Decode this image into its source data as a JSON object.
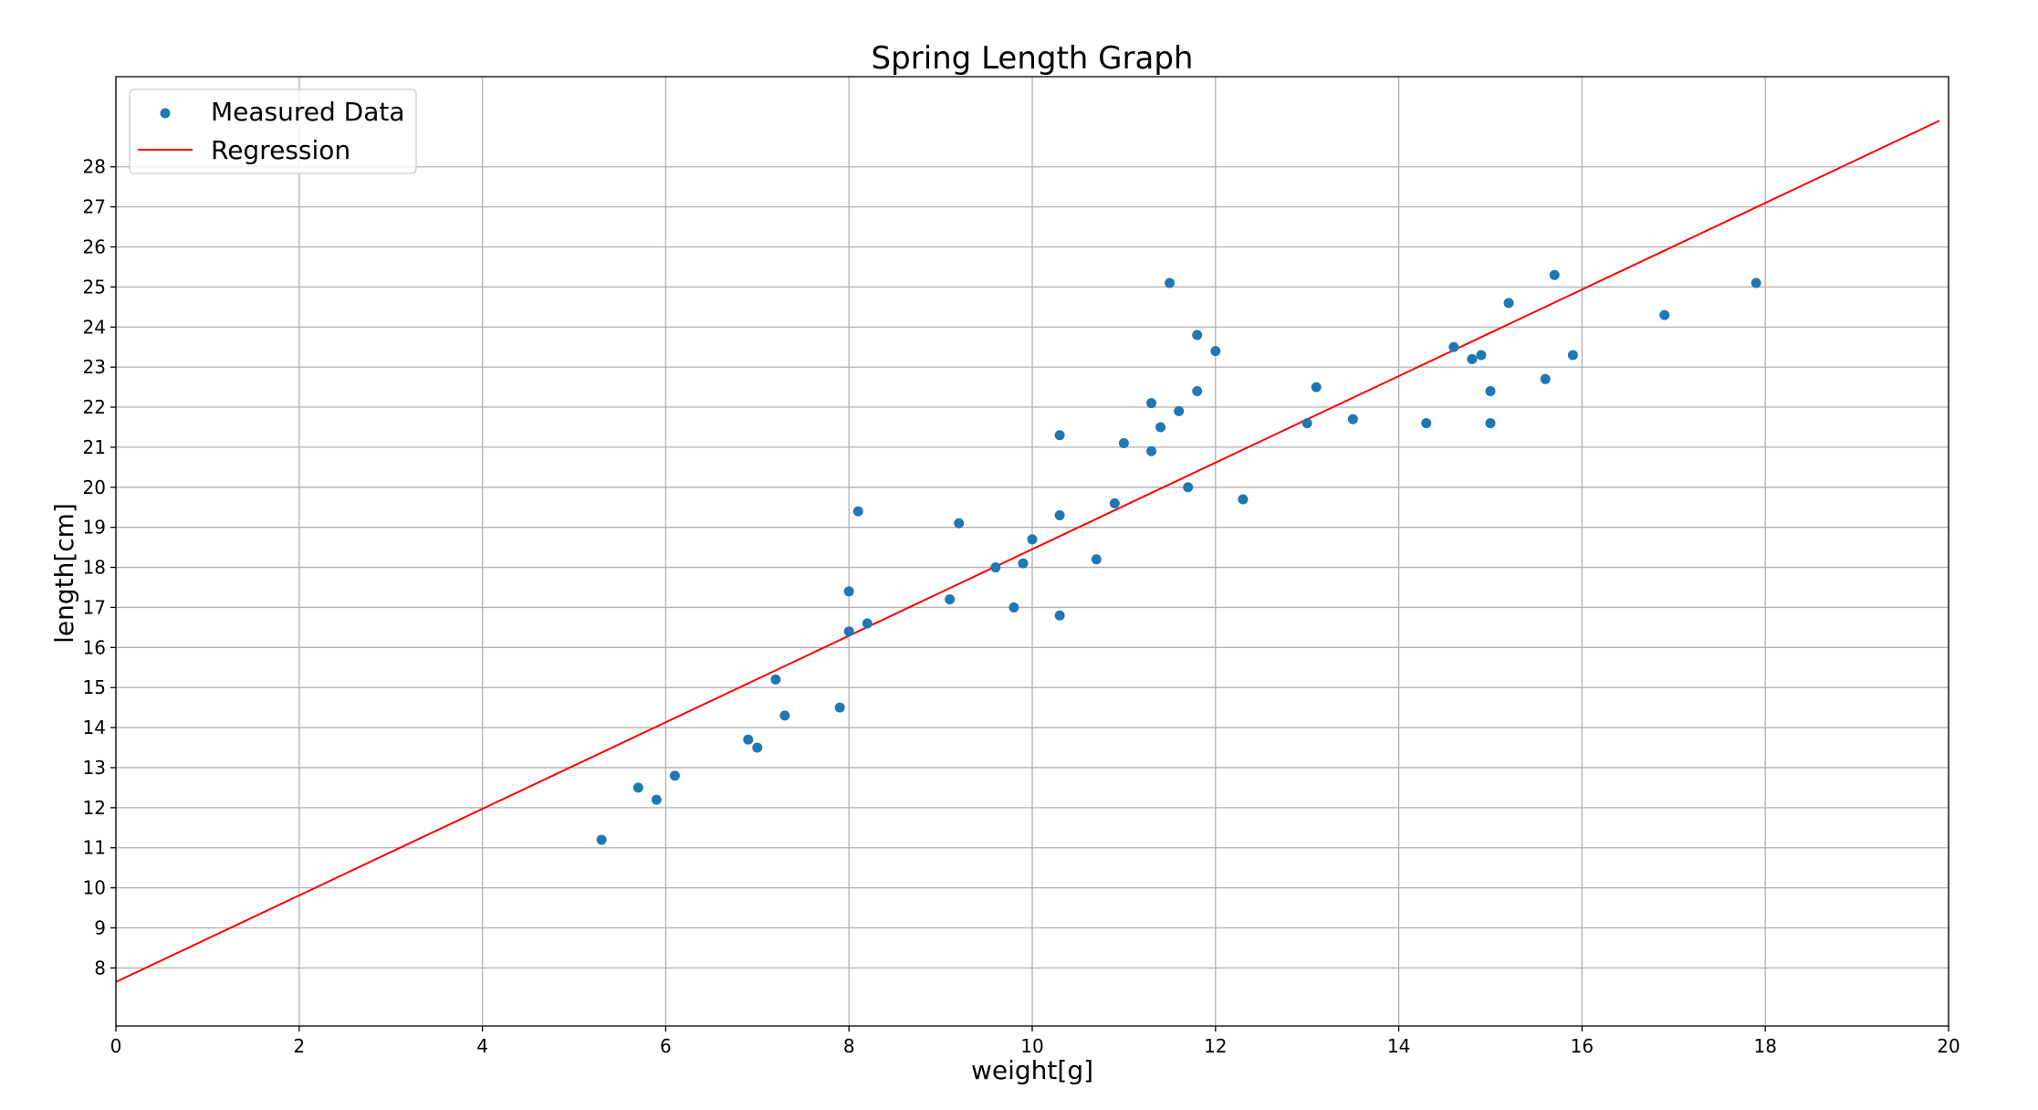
{
  "chart_data": {
    "type": "scatter",
    "title": "Spring Length Graph",
    "xlabel": "weight[g]",
    "ylabel": "length[cm]",
    "xlim": [
      0,
      20
    ],
    "ylim": [
      6.55,
      30.25
    ],
    "xticks": [
      0,
      2,
      4,
      6,
      8,
      10,
      12,
      14,
      16,
      18,
      20
    ],
    "yticks": [
      8,
      9,
      10,
      11,
      12,
      13,
      14,
      15,
      16,
      17,
      18,
      19,
      20,
      21,
      22,
      23,
      24,
      25,
      26,
      27,
      28
    ],
    "grid": true,
    "legend_position": "top-left",
    "series": [
      {
        "name": "Measured Data",
        "kind": "scatter",
        "color": "#1f77b4",
        "points": [
          [
            5.3,
            11.2
          ],
          [
            5.7,
            12.5
          ],
          [
            5.9,
            12.2
          ],
          [
            6.1,
            12.8
          ],
          [
            6.9,
            13.7
          ],
          [
            7.0,
            13.5
          ],
          [
            7.2,
            15.2
          ],
          [
            7.3,
            14.3
          ],
          [
            7.9,
            14.5
          ],
          [
            8.0,
            16.4
          ],
          [
            8.0,
            17.4
          ],
          [
            8.1,
            19.4
          ],
          [
            8.2,
            16.6
          ],
          [
            9.1,
            17.2
          ],
          [
            9.2,
            19.1
          ],
          [
            9.6,
            18.0
          ],
          [
            9.8,
            17.0
          ],
          [
            9.9,
            18.1
          ],
          [
            10.0,
            18.7
          ],
          [
            10.3,
            16.8
          ],
          [
            10.3,
            19.3
          ],
          [
            10.3,
            21.3
          ],
          [
            10.7,
            18.2
          ],
          [
            10.9,
            19.6
          ],
          [
            11.0,
            21.1
          ],
          [
            11.3,
            20.9
          ],
          [
            11.3,
            22.1
          ],
          [
            11.4,
            21.5
          ],
          [
            11.5,
            25.1
          ],
          [
            11.6,
            21.9
          ],
          [
            11.7,
            20.0
          ],
          [
            11.8,
            22.4
          ],
          [
            11.8,
            23.8
          ],
          [
            12.0,
            23.4
          ],
          [
            12.3,
            19.7
          ],
          [
            13.0,
            21.6
          ],
          [
            13.1,
            22.5
          ],
          [
            13.5,
            21.7
          ],
          [
            14.3,
            21.6
          ],
          [
            14.6,
            23.5
          ],
          [
            14.8,
            23.2
          ],
          [
            14.9,
            23.3
          ],
          [
            15.0,
            22.4
          ],
          [
            15.0,
            21.6
          ],
          [
            15.2,
            24.6
          ],
          [
            15.6,
            22.7
          ],
          [
            15.7,
            25.3
          ],
          [
            15.9,
            23.3
          ],
          [
            16.9,
            24.3
          ],
          [
            17.9,
            25.1
          ]
        ]
      },
      {
        "name": "Regression",
        "kind": "line",
        "color": "#ff0000",
        "points": [
          [
            0,
            7.65
          ],
          [
            19.9,
            29.15
          ]
        ]
      }
    ]
  }
}
